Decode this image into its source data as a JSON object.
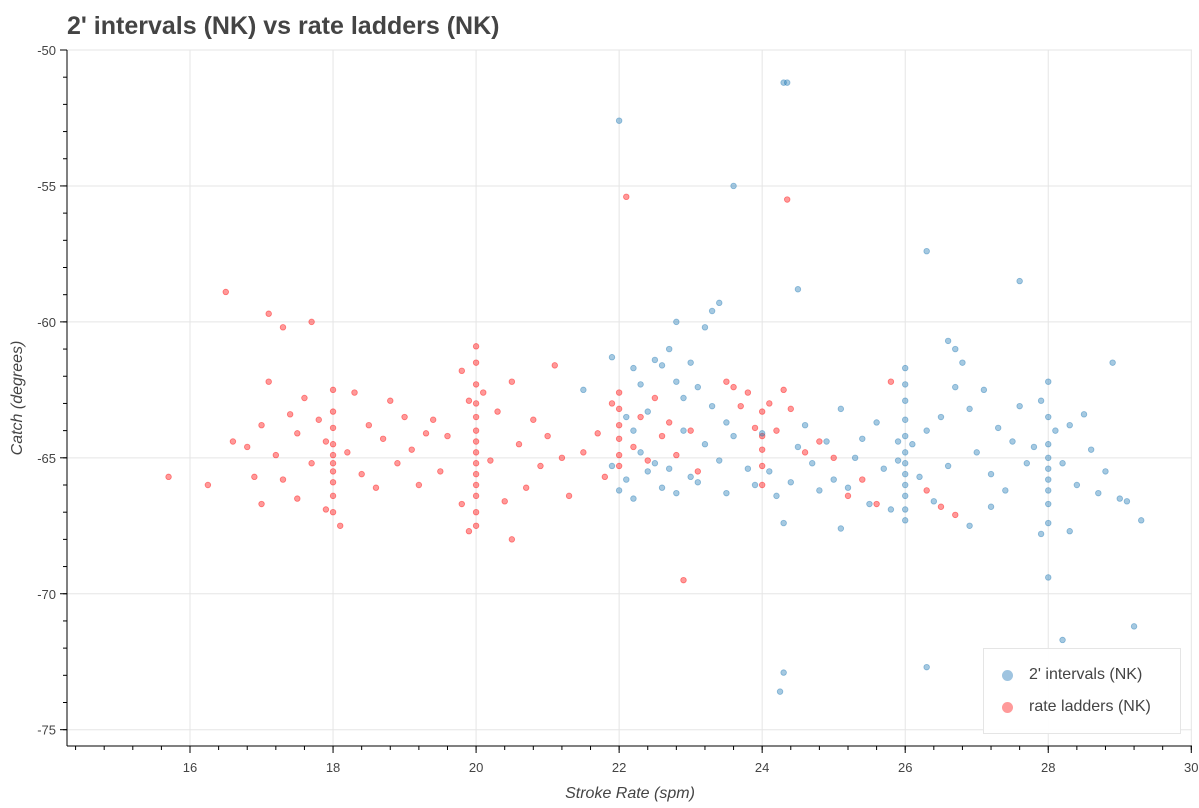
{
  "chart_data": {
    "type": "scatter",
    "title": "2' intervals (NK) vs rate ladders (NK)",
    "xlabel": "Stroke Rate (spm)",
    "ylabel": "Catch (degrees)",
    "xlim": [
      14.28,
      30.01
    ],
    "ylim": [
      -75.6,
      -50
    ],
    "xticks": [
      16,
      18,
      20,
      22,
      24,
      26,
      28,
      30
    ],
    "yticks": [
      -50,
      -55,
      -60,
      -65,
      -70,
      -75
    ],
    "grid": true,
    "legend_position": "bottom-right",
    "series": [
      {
        "name": "2' intervals (NK)",
        "color": "#1f77b4",
        "points": [
          [
            22,
            -52.6
          ],
          [
            24.3,
            -51.2
          ],
          [
            24.35,
            -51.2
          ],
          [
            23.6,
            -55
          ],
          [
            26.3,
            -57.4
          ],
          [
            27.6,
            -58.5
          ],
          [
            24.5,
            -58.8
          ],
          [
            23.4,
            -59.3
          ],
          [
            23.3,
            -59.6
          ],
          [
            22.8,
            -60
          ],
          [
            23.2,
            -60.2
          ],
          [
            26.6,
            -60.7
          ],
          [
            21.9,
            -61.3
          ],
          [
            22.7,
            -61
          ],
          [
            23,
            -61.5
          ],
          [
            22.2,
            -61.7
          ],
          [
            22.5,
            -61.4
          ],
          [
            22.8,
            -62.2
          ],
          [
            22.9,
            -62.8
          ],
          [
            21.5,
            -62.5
          ],
          [
            22.3,
            -62.3
          ],
          [
            22.6,
            -61.6
          ],
          [
            23.1,
            -62.4
          ],
          [
            22.4,
            -63.3
          ],
          [
            22.1,
            -63.5
          ],
          [
            22.2,
            -64
          ],
          [
            22.3,
            -64.8
          ],
          [
            22.5,
            -65.2
          ],
          [
            22.1,
            -65.8
          ],
          [
            21.9,
            -65.3
          ],
          [
            22,
            -66.2
          ],
          [
            22.2,
            -66.5
          ],
          [
            22.4,
            -65.5
          ],
          [
            22.6,
            -66.1
          ],
          [
            22.7,
            -65.4
          ],
          [
            22.8,
            -66.3
          ],
          [
            23,
            -65.7
          ],
          [
            23.2,
            -64.5
          ],
          [
            23.4,
            -65.1
          ],
          [
            23.5,
            -63.7
          ],
          [
            23.3,
            -63.1
          ],
          [
            23.6,
            -64.2
          ],
          [
            23.8,
            -65.4
          ],
          [
            23.9,
            -66
          ],
          [
            24,
            -64.1
          ],
          [
            24.1,
            -65.5
          ],
          [
            24.2,
            -66.4
          ],
          [
            24.3,
            -67.4
          ],
          [
            24.4,
            -65.9
          ],
          [
            24.5,
            -64.6
          ],
          [
            24.6,
            -63.8
          ],
          [
            24.7,
            -65.2
          ],
          [
            24.8,
            -66.2
          ],
          [
            24.9,
            -64.4
          ],
          [
            25,
            -65.8
          ],
          [
            25.1,
            -63.2
          ],
          [
            25.2,
            -66.1
          ],
          [
            25.3,
            -65
          ],
          [
            25.4,
            -64.3
          ],
          [
            25.5,
            -66.7
          ],
          [
            25.1,
            -67.6
          ],
          [
            25.6,
            -63.7
          ],
          [
            25.7,
            -65.4
          ],
          [
            25.8,
            -66.9
          ],
          [
            25.9,
            -65.1
          ],
          [
            26,
            -61.7
          ],
          [
            26,
            -62.3
          ],
          [
            26,
            -62.9
          ],
          [
            26,
            -63.6
          ],
          [
            26,
            -64.2
          ],
          [
            26,
            -64.8
          ],
          [
            26,
            -65.2
          ],
          [
            26,
            -65.6
          ],
          [
            26,
            -66
          ],
          [
            26,
            -66.4
          ],
          [
            26,
            -66.9
          ],
          [
            26,
            -67.3
          ],
          [
            26.1,
            -64.5
          ],
          [
            26.2,
            -65.7
          ],
          [
            26.3,
            -64
          ],
          [
            26.4,
            -66.6
          ],
          [
            26.5,
            -63.5
          ],
          [
            26.6,
            -65.3
          ],
          [
            26.7,
            -62.4
          ],
          [
            26.7,
            -61
          ],
          [
            26.8,
            -61.5
          ],
          [
            26.9,
            -63.2
          ],
          [
            27,
            -64.8
          ],
          [
            27.1,
            -62.5
          ],
          [
            27.2,
            -65.6
          ],
          [
            27.3,
            -63.9
          ],
          [
            27.4,
            -66.2
          ],
          [
            27.5,
            -64.4
          ],
          [
            27.6,
            -63.1
          ],
          [
            27.7,
            -65.2
          ],
          [
            27.8,
            -64.6
          ],
          [
            27.9,
            -62.9
          ],
          [
            28,
            -62.2
          ],
          [
            28,
            -63.5
          ],
          [
            28,
            -64.5
          ],
          [
            28,
            -65
          ],
          [
            28,
            -65.4
          ],
          [
            28,
            -65.8
          ],
          [
            28,
            -66.2
          ],
          [
            28,
            -66.7
          ],
          [
            28,
            -67.4
          ],
          [
            28.1,
            -64
          ],
          [
            28.2,
            -65.2
          ],
          [
            28.3,
            -63.8
          ],
          [
            28.4,
            -66
          ],
          [
            28.5,
            -63.4
          ],
          [
            28.6,
            -64.7
          ],
          [
            28.7,
            -66.3
          ],
          [
            28.8,
            -65.5
          ],
          [
            28.9,
            -61.5
          ],
          [
            29,
            -66.5
          ],
          [
            29.1,
            -66.6
          ],
          [
            29.3,
            -67.3
          ],
          [
            27.9,
            -67.8
          ],
          [
            28.3,
            -67.7
          ],
          [
            28,
            -69.4
          ],
          [
            28.2,
            -71.7
          ],
          [
            29.2,
            -71.2
          ],
          [
            26.3,
            -72.7
          ],
          [
            24.3,
            -72.9
          ],
          [
            24.25,
            -73.6
          ],
          [
            23.5,
            -66.3
          ],
          [
            23.1,
            -65.9
          ],
          [
            22.9,
            -64
          ],
          [
            25.9,
            -64.4
          ],
          [
            27.2,
            -66.8
          ],
          [
            26.9,
            -67.5
          ]
        ]
      },
      {
        "name": "rate ladders (NK)",
        "color": "#ff0000",
        "points": [
          [
            15.7,
            -65.7
          ],
          [
            16.25,
            -66
          ],
          [
            16.5,
            -58.9
          ],
          [
            16.6,
            -64.4
          ],
          [
            16.8,
            -64.6
          ],
          [
            16.9,
            -65.7
          ],
          [
            17,
            -63.8
          ],
          [
            17,
            -66.7
          ],
          [
            17.1,
            -59.7
          ],
          [
            17.1,
            -62.2
          ],
          [
            17.2,
            -64.9
          ],
          [
            17.3,
            -60.2
          ],
          [
            17.3,
            -65.8
          ],
          [
            17.4,
            -63.4
          ],
          [
            17.5,
            -66.5
          ],
          [
            17.5,
            -64.1
          ],
          [
            17.6,
            -62.8
          ],
          [
            17.7,
            -65.2
          ],
          [
            17.7,
            -60
          ],
          [
            17.8,
            -63.6
          ],
          [
            17.9,
            -66.9
          ],
          [
            17.9,
            -64.4
          ],
          [
            18,
            -62.5
          ],
          [
            18,
            -63.3
          ],
          [
            18,
            -63.9
          ],
          [
            18,
            -64.5
          ],
          [
            18,
            -64.9
          ],
          [
            18,
            -65.2
          ],
          [
            18,
            -65.5
          ],
          [
            18,
            -65.9
          ],
          [
            18,
            -66.4
          ],
          [
            18,
            -67
          ],
          [
            18.1,
            -67.5
          ],
          [
            18.2,
            -64.8
          ],
          [
            18.3,
            -62.6
          ],
          [
            18.4,
            -65.6
          ],
          [
            18.5,
            -63.8
          ],
          [
            18.6,
            -66.1
          ],
          [
            18.7,
            -64.3
          ],
          [
            18.8,
            -62.9
          ],
          [
            18.9,
            -65.2
          ],
          [
            19,
            -63.5
          ],
          [
            19.1,
            -64.7
          ],
          [
            19.2,
            -66
          ],
          [
            19.3,
            -64.1
          ],
          [
            19.4,
            -63.6
          ],
          [
            19.5,
            -65.5
          ],
          [
            19.6,
            -64.2
          ],
          [
            19.8,
            -66.7
          ],
          [
            19.8,
            -61.8
          ],
          [
            19.9,
            -62.9
          ],
          [
            19.9,
            -67.7
          ],
          [
            20,
            -60.9
          ],
          [
            20,
            -61.5
          ],
          [
            20,
            -62.3
          ],
          [
            20,
            -63
          ],
          [
            20,
            -63.5
          ],
          [
            20,
            -64
          ],
          [
            20,
            -64.4
          ],
          [
            20,
            -64.8
          ],
          [
            20,
            -65.2
          ],
          [
            20,
            -65.6
          ],
          [
            20,
            -66
          ],
          [
            20,
            -66.4
          ],
          [
            20,
            -67
          ],
          [
            20,
            -67.5
          ],
          [
            20.1,
            -62.6
          ],
          [
            20.2,
            -65.1
          ],
          [
            20.3,
            -63.3
          ],
          [
            20.4,
            -66.6
          ],
          [
            20.5,
            -62.2
          ],
          [
            20.5,
            -68
          ],
          [
            20.6,
            -64.5
          ],
          [
            20.7,
            -66.1
          ],
          [
            20.8,
            -63.6
          ],
          [
            20.9,
            -65.3
          ],
          [
            21,
            -64.2
          ],
          [
            21.1,
            -61.6
          ],
          [
            21.2,
            -65
          ],
          [
            21.3,
            -66.4
          ],
          [
            21.5,
            -64.8
          ],
          [
            21.7,
            -64.1
          ],
          [
            21.8,
            -65.7
          ],
          [
            21.9,
            -63
          ],
          [
            22,
            -62.6
          ],
          [
            22,
            -63.2
          ],
          [
            22,
            -63.8
          ],
          [
            22,
            -64.3
          ],
          [
            22,
            -64.9
          ],
          [
            22,
            -65.3
          ],
          [
            22.1,
            -55.4
          ],
          [
            22.2,
            -64.6
          ],
          [
            22.3,
            -63.5
          ],
          [
            22.4,
            -65.1
          ],
          [
            22.5,
            -62.8
          ],
          [
            22.6,
            -64.2
          ],
          [
            22.7,
            -63.7
          ],
          [
            22.8,
            -64.9
          ],
          [
            22.9,
            -69.5
          ],
          [
            23,
            -64
          ],
          [
            23.1,
            -65.5
          ],
          [
            23.5,
            -62.2
          ],
          [
            23.6,
            -62.4
          ],
          [
            23.7,
            -63.1
          ],
          [
            23.8,
            -62.6
          ],
          [
            23.9,
            -63.9
          ],
          [
            24,
            -63.3
          ],
          [
            24,
            -64.2
          ],
          [
            24,
            -64.7
          ],
          [
            24,
            -65.3
          ],
          [
            24,
            -66
          ],
          [
            24.1,
            -63
          ],
          [
            24.2,
            -64
          ],
          [
            24.3,
            -62.5
          ],
          [
            24.35,
            -55.5
          ],
          [
            24.4,
            -63.2
          ],
          [
            24.6,
            -64.8
          ],
          [
            24.8,
            -64.4
          ],
          [
            25,
            -65
          ],
          [
            25.2,
            -66.4
          ],
          [
            25.4,
            -65.8
          ],
          [
            25.6,
            -66.7
          ],
          [
            25.8,
            -62.2
          ],
          [
            26.3,
            -66.2
          ],
          [
            26.5,
            -66.8
          ],
          [
            26.7,
            -67.1
          ]
        ]
      }
    ]
  }
}
